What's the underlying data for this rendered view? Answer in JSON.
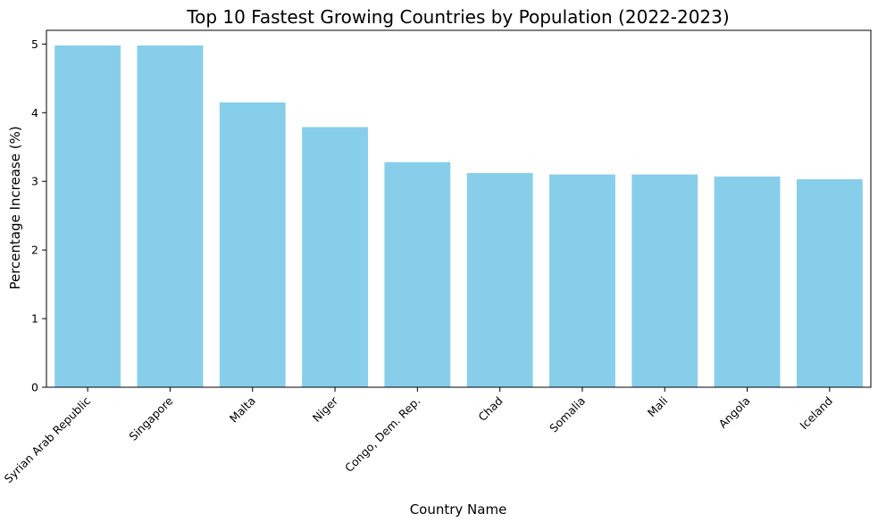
{
  "chart_data": {
    "type": "bar",
    "title": "Top 10 Fastest Growing Countries by Population (2022-2023)",
    "xlabel": "Country Name",
    "ylabel": "Percentage Increase (%)",
    "categories": [
      "Syrian Arab Republic",
      "Singapore",
      "Malta",
      "Niger",
      "Congo, Dem. Rep.",
      "Chad",
      "Somalia",
      "Mali",
      "Angola",
      "Iceland"
    ],
    "values": [
      4.98,
      4.98,
      4.15,
      3.79,
      3.28,
      3.12,
      3.1,
      3.1,
      3.07,
      3.03
    ],
    "ylim": [
      0,
      5.2
    ],
    "yticks": [
      0,
      1,
      2,
      3,
      4,
      5
    ],
    "bar_color": "#87CEEB",
    "grid": false,
    "legend": "none"
  }
}
